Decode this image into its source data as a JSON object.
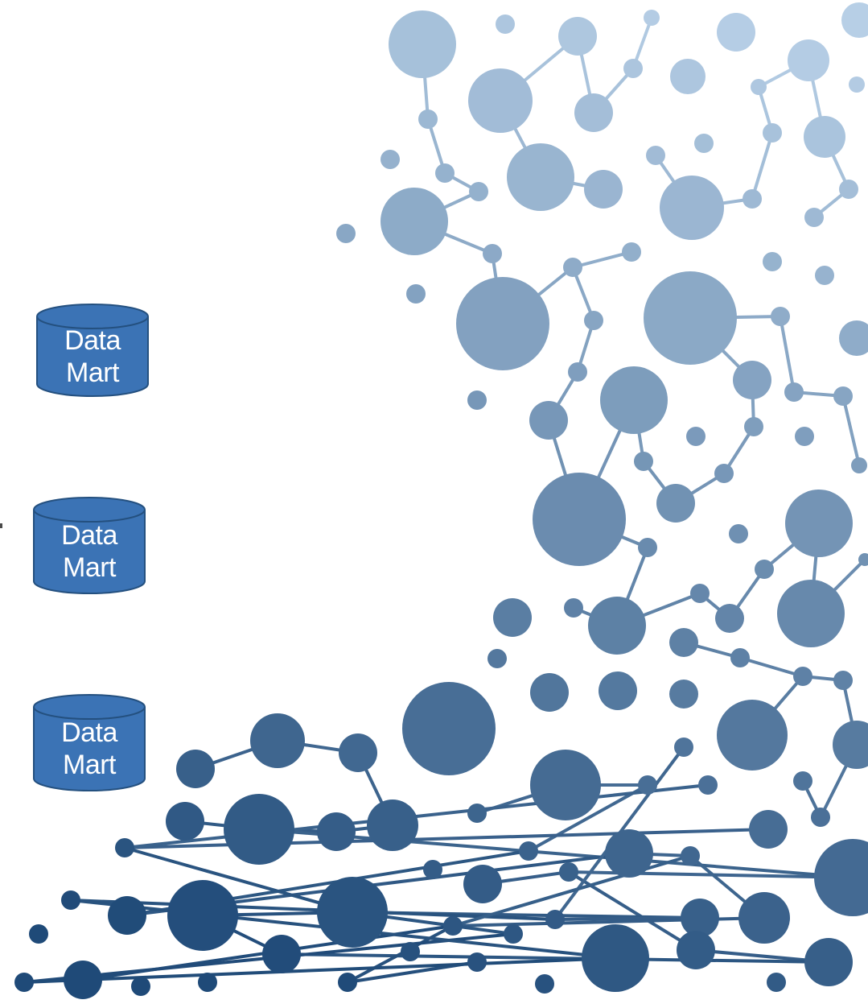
{
  "colors": {
    "cylinder_fill": "#3b73b5",
    "cylinder_stroke": "#24507f",
    "node_light": "#b7cfe6",
    "node_dark": "#1f4a78"
  },
  "data_marts": [
    {
      "line1": "Data",
      "line2": "Mart"
    },
    {
      "line1": "Data",
      "line2": "Mart"
    },
    {
      "line1": "Data",
      "line2": "Mart"
    }
  ]
}
